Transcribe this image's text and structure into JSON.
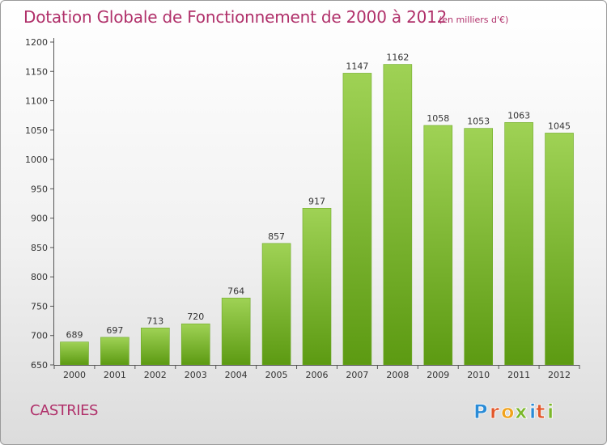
{
  "header": {
    "title": "Dotation Globale de Fonctionnement de 2000 à 2012",
    "unit": "(en milliers d'€)"
  },
  "footer": {
    "commune": "CASTRIES",
    "logo_text": "Proxiti"
  },
  "colors": {
    "title": "#b0306a",
    "bar_top": "#9fd255",
    "bar_bottom": "#5c9a12",
    "logo_letters": [
      "#2a8bd6",
      "#e2572b",
      "#f0a31e",
      "#7bb72a",
      "#2a8bd6",
      "#e2572b",
      "#7bb72a"
    ]
  },
  "chart_data": {
    "type": "bar",
    "categories": [
      "2000",
      "2001",
      "2002",
      "2003",
      "2004",
      "2005",
      "2006",
      "2007",
      "2008",
      "2009",
      "2010",
      "2011",
      "2012"
    ],
    "values": [
      689,
      697,
      713,
      720,
      764,
      857,
      917,
      1147,
      1162,
      1058,
      1053,
      1063,
      1045
    ],
    "title": "Dotation Globale de Fonctionnement de 2000 à 2012",
    "ylim": [
      650,
      1200
    ],
    "yticks": [
      650,
      700,
      750,
      800,
      850,
      900,
      950,
      1000,
      1050,
      1100,
      1150,
      1200
    ],
    "grid": false,
    "legend": "none"
  }
}
